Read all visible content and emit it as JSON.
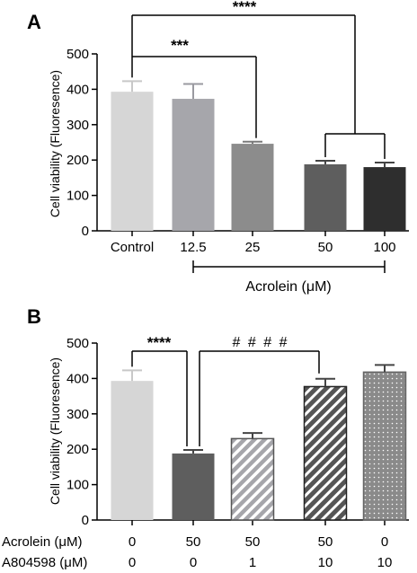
{
  "colors": {
    "axis": "#000000",
    "bar_light": "#d6d6d6",
    "bar_lightgray": "#a6a6ab",
    "bar_mid": "#8c8c8c",
    "bar_dark": "#5e5e5e",
    "bar_darkest": "#2e2e2e",
    "bar_hatched_light": "#a6a6ab",
    "bar_hatched_dark": "#5e5e5e",
    "bar_dotted": "#8c8c8c"
  },
  "chart_data": [
    {
      "panel": "A",
      "type": "bar",
      "ylabel": "Cell viability (Fluoresence)",
      "xlabel": "Acrolein (μM)",
      "ylim": [
        0,
        500
      ],
      "yticks": [
        0,
        100,
        200,
        300,
        400,
        500
      ],
      "categories": [
        "Control",
        "12.5",
        "25",
        "50",
        "100"
      ],
      "values": [
        393,
        373,
        246,
        188,
        180
      ],
      "errors": [
        30,
        42,
        6,
        10,
        13
      ],
      "bar_styles": [
        "bar_light",
        "bar_lightgray",
        "bar_mid",
        "bar_dark",
        "bar_darkest"
      ],
      "annotations": [
        {
          "text": "****",
          "from": 0,
          "to": "50-100 group",
          "level": 620
        },
        {
          "text": "***",
          "from": 0,
          "to": 2,
          "level": 490
        }
      ]
    },
    {
      "panel": "B",
      "type": "bar",
      "ylabel": "Cell viability (Fluoresence)",
      "ylim": [
        0,
        500
      ],
      "yticks": [
        0,
        100,
        200,
        300,
        400,
        500
      ],
      "values": [
        393,
        188,
        230,
        377,
        418
      ],
      "errors": [
        30,
        10,
        16,
        22,
        20
      ],
      "bar_styles": [
        "bar_light",
        "bar_dark",
        "hatched_light",
        "hatched_dark",
        "dotted"
      ],
      "rows": [
        {
          "label": "Acrolein (μM)",
          "values": [
            "0",
            "50",
            "50",
            "50",
            "0"
          ]
        },
        {
          "label": "A804598 (μM)",
          "values": [
            "0",
            "0",
            "1",
            "10",
            "10"
          ]
        }
      ],
      "annotations": [
        {
          "text": "****",
          "from": 0,
          "to": 1,
          "level": 475
        },
        {
          "text": "# # # #",
          "from": 1,
          "to": 3,
          "level": 475
        }
      ]
    }
  ]
}
